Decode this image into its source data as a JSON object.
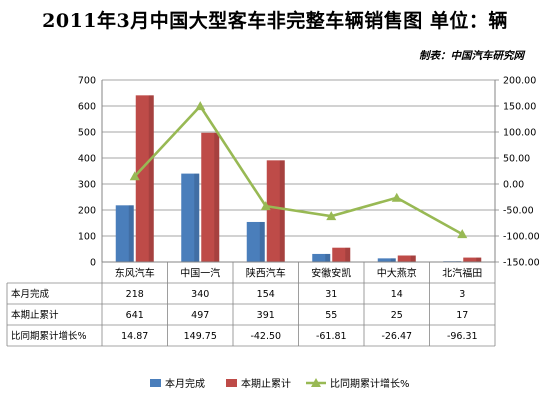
{
  "title": "2011年3月中国大型客车非完整车辆销售图 单位：辆",
  "source": "制表：中国汽车研究网",
  "chart_data": {
    "type": "bar",
    "categories": [
      "东风汽车",
      "中国一汽",
      "陕西汽车",
      "安徽安凯",
      "中大燕京",
      "北汽福田"
    ],
    "ylim": [
      0,
      700
    ],
    "y_ticks": [
      "0",
      "100",
      "200",
      "300",
      "400",
      "500",
      "600",
      "700"
    ],
    "y2lim": [
      -150,
      200
    ],
    "y2_ticks": [
      "-150.00",
      "-100.00",
      "-50.00",
      "0.00",
      "50.00",
      "100.00",
      "150.00",
      "200.00"
    ],
    "grid": true,
    "legend_position": "bottom",
    "series": [
      {
        "name": "本月完成",
        "type": "bar",
        "axis": "left",
        "color": "#4a7ebb",
        "values": [
          218,
          340,
          154,
          31,
          14,
          3
        ],
        "labels": [
          "218",
          "340",
          "154",
          "31",
          "14",
          "3"
        ]
      },
      {
        "name": "本期止累计",
        "type": "bar",
        "axis": "left",
        "color": "#be4b48",
        "values": [
          641,
          497,
          391,
          55,
          25,
          17
        ],
        "labels": [
          "641",
          "497",
          "391",
          "55",
          "25",
          "17"
        ]
      },
      {
        "name": "比同期累计增长%",
        "type": "line",
        "axis": "right",
        "color": "#98b954",
        "values": [
          14.87,
          149.75,
          -42.5,
          -61.81,
          -26.47,
          -96.31
        ],
        "labels": [
          "14.87",
          "149.75",
          "-42.50",
          "-61.81",
          "-26.47",
          "-96.31"
        ]
      }
    ]
  }
}
